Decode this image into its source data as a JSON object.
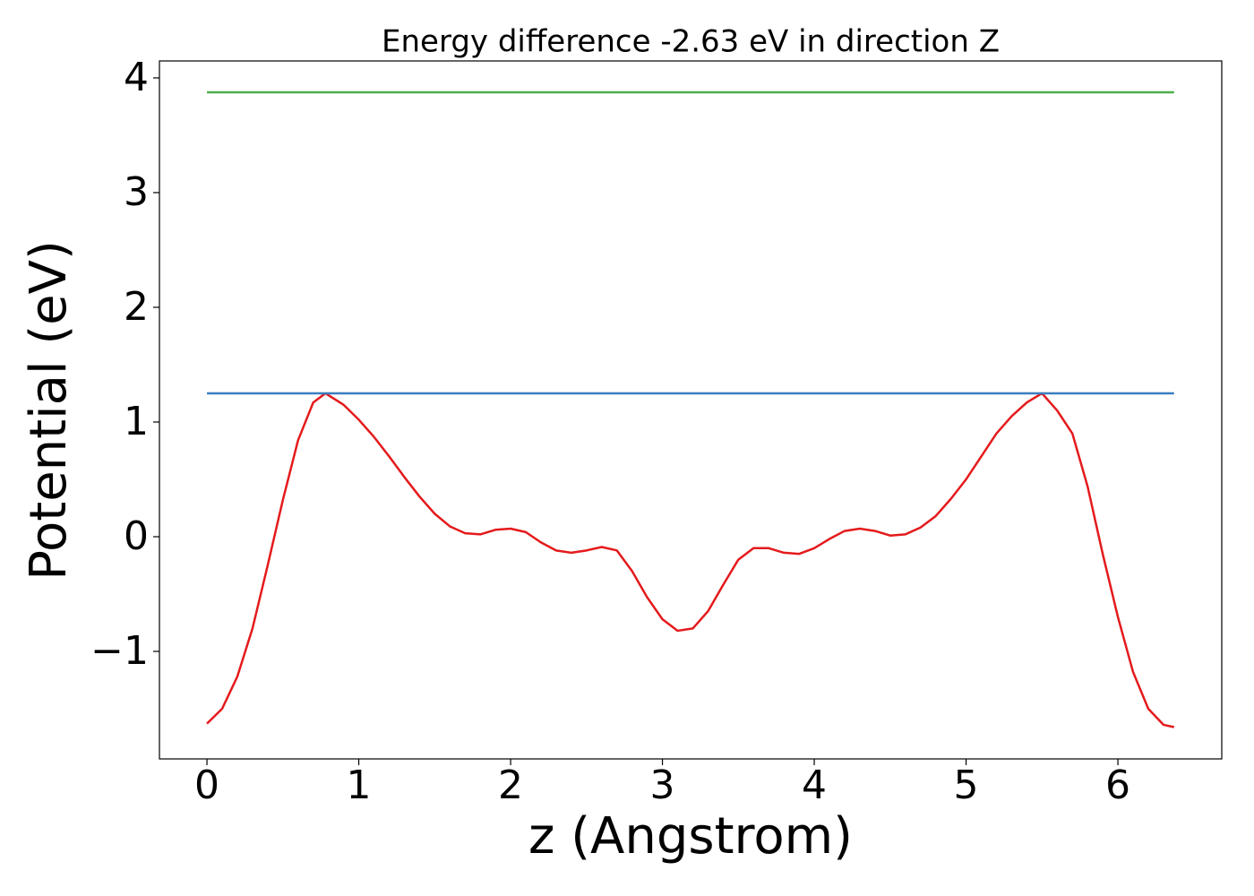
{
  "chart_data": {
    "type": "line",
    "title": "Energy difference -2.63 eV in direction Z",
    "xlabel": "z (Angstrom)",
    "ylabel": "Potential (eV)",
    "xlim": [
      -0.313,
      6.684
    ],
    "ylim": [
      -1.9375,
      4.148
    ],
    "xticks": [
      0,
      1,
      2,
      3,
      4,
      5,
      6
    ],
    "yticks": [
      {
        "value": -1,
        "label": "−1"
      },
      0,
      1,
      2,
      3,
      4
    ],
    "series": [
      {
        "color": "#e41a1c",
        "x": [
          0,
          0.1,
          0.2,
          0.3,
          0.4,
          0.5,
          0.6,
          0.7,
          0.78,
          0.9,
          1.0,
          1.1,
          1.2,
          1.3,
          1.4,
          1.5,
          1.6,
          1.7,
          1.8,
          1.9,
          2.0,
          2.1,
          2.2,
          2.3,
          2.4,
          2.5,
          2.6,
          2.7,
          2.8,
          2.9,
          3.0,
          3.1,
          3.2,
          3.3,
          3.4,
          3.5,
          3.6,
          3.7,
          3.8,
          3.9,
          4.0,
          4.1,
          4.2,
          4.3,
          4.4,
          4.5,
          4.6,
          4.7,
          4.8,
          4.9,
          5.0,
          5.1,
          5.2,
          5.3,
          5.4,
          5.5,
          5.6,
          5.7,
          5.8,
          5.9,
          6.0,
          6.1,
          6.2,
          6.3,
          6.37
        ],
        "values": [
          -1.63,
          -1.5,
          -1.22,
          -0.8,
          -0.25,
          0.32,
          0.84,
          1.17,
          1.25,
          1.15,
          1.02,
          0.87,
          0.7,
          0.52,
          0.35,
          0.2,
          0.09,
          0.03,
          0.02,
          0.06,
          0.07,
          0.04,
          -0.05,
          -0.12,
          -0.14,
          -0.12,
          -0.09,
          -0.12,
          -0.3,
          -0.53,
          -0.72,
          -0.82,
          -0.8,
          -0.65,
          -0.42,
          -0.2,
          -0.1,
          -0.1,
          -0.14,
          -0.15,
          -0.1,
          -0.02,
          0.05,
          0.07,
          0.05,
          0.01,
          0.02,
          0.08,
          0.18,
          0.33,
          0.5,
          0.7,
          0.9,
          1.05,
          1.17,
          1.25,
          1.1,
          0.9,
          0.44,
          -0.15,
          -0.7,
          -1.18,
          -1.5,
          -1.64,
          -1.66
        ]
      },
      {
        "color": "#3a7fc0",
        "x": [
          0,
          6.37
        ],
        "values": [
          1.25,
          1.25
        ]
      },
      {
        "color": "#4daf4a",
        "x": [
          0,
          6.37
        ],
        "values": [
          3.875,
          3.875
        ]
      }
    ]
  }
}
